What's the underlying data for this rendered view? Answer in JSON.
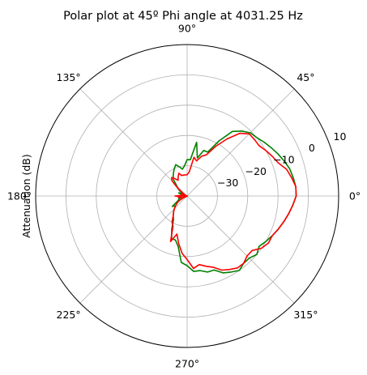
{
  "chart_data": {
    "type": "line",
    "projection": "polar",
    "title": "Polar plot at 45º Phi angle at 4031.25 Hz",
    "ylabel": "Attenuation (dB)",
    "theta_unit": "degrees",
    "theta_tick_labels": [
      "0°",
      "45°",
      "90°",
      "135°",
      "180°",
      "225°",
      "270°",
      "315°"
    ],
    "r_tick_labels": [
      "−30",
      "−20",
      "−10",
      "0",
      "10"
    ],
    "r_ticks": [
      -30,
      -20,
      -10,
      0,
      10
    ],
    "rlim": [
      -40,
      10
    ],
    "grid": true,
    "legend": "none",
    "series": [
      {
        "color": "#008000",
        "theta": [
          0,
          5,
          10,
          15,
          20,
          25,
          30,
          35,
          40,
          45,
          50,
          55,
          60,
          65,
          70,
          75,
          80,
          85,
          90,
          95,
          100,
          105,
          110,
          115,
          120,
          125,
          130,
          135,
          140,
          145,
          150,
          155,
          160,
          165,
          170,
          175,
          180,
          185,
          190,
          195,
          200,
          205,
          210,
          215,
          220,
          225,
          230,
          235,
          240,
          245,
          250,
          255,
          260,
          265,
          270,
          275,
          280,
          285,
          290,
          295,
          300,
          305,
          310,
          315,
          320,
          325,
          330,
          335,
          340,
          345,
          350,
          355,
          360
        ],
        "r": [
          -4,
          -4,
          -4.5,
          -5,
          -6,
          -7,
          -8,
          -9,
          -10,
          -10.5,
          -12,
          -14,
          -19,
          -24,
          -24,
          -27,
          -22,
          -28,
          -28,
          -30,
          -31,
          -30,
          -29,
          -30,
          -31,
          -32,
          -33,
          -35,
          -36,
          -37,
          -38,
          -38,
          -37,
          -38,
          -39,
          -40,
          -40,
          -40,
          -39,
          -38,
          -37,
          -37,
          -36,
          -34,
          -35,
          -34,
          -33,
          -32,
          -31,
          -28,
          -25,
          -25,
          -23,
          -18,
          -17,
          -15,
          -15,
          -14,
          -14,
          -12,
          -11,
          -10,
          -11,
          -11,
          -10,
          -11,
          -10,
          -9,
          -8,
          -7,
          -6,
          -5,
          -4
        ]
      },
      {
        "color": "#ff0000",
        "theta": [
          0,
          5,
          10,
          15,
          20,
          25,
          30,
          35,
          40,
          45,
          50,
          55,
          60,
          65,
          70,
          75,
          80,
          85,
          90,
          95,
          100,
          105,
          110,
          115,
          120,
          125,
          130,
          135,
          140,
          145,
          150,
          155,
          160,
          165,
          170,
          175,
          180,
          185,
          190,
          195,
          200,
          205,
          210,
          215,
          220,
          225,
          230,
          235,
          240,
          245,
          250,
          255,
          260,
          265,
          270,
          275,
          280,
          285,
          290,
          295,
          300,
          305,
          310,
          315,
          320,
          325,
          330,
          335,
          340,
          345,
          350,
          355,
          360
        ],
        "r": [
          -4,
          -4,
          -5,
          -6,
          -8,
          -9,
          -10,
          -11,
          -11,
          -11,
          -13,
          -17,
          -21,
          -25,
          -26,
          -28,
          -27,
          -32,
          -33,
          -33,
          -33,
          -33,
          -32,
          -33,
          -34,
          -33,
          -32,
          -33,
          -36,
          -38,
          -39,
          -39,
          -38,
          -40,
          -39,
          -38,
          -36,
          -38,
          -37,
          -39,
          -40,
          -39,
          -37,
          -36,
          -35,
          -34,
          -33,
          -32,
          -30,
          -29,
          -24,
          -27,
          -24,
          -21,
          -19,
          -16,
          -17,
          -16,
          -15,
          -13,
          -12,
          -11,
          -11,
          -12,
          -12,
          -10,
          -9,
          -9,
          -8,
          -7,
          -6,
          -5,
          -4
        ]
      }
    ]
  }
}
